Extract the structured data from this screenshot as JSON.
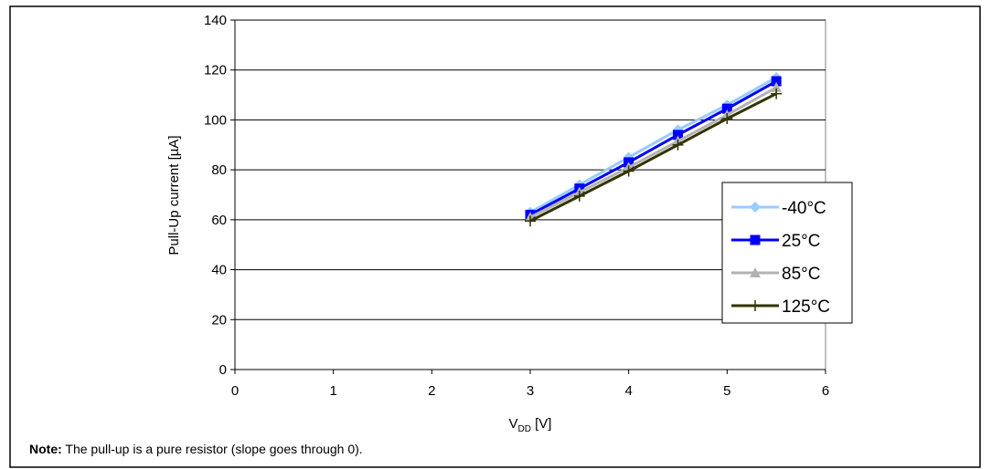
{
  "chart_data": {
    "type": "line",
    "xlabel_main": "V",
    "xlabel_sub": "DD",
    "xlabel_unit": " [V]",
    "ylabel": "Pull-Up current [µA]",
    "xlim": [
      0,
      6
    ],
    "ylim": [
      0,
      140
    ],
    "xticks": [
      0,
      1,
      2,
      3,
      4,
      5,
      6
    ],
    "yticks": [
      0,
      20,
      40,
      60,
      80,
      100,
      120,
      140
    ],
    "grid": "horizontal",
    "legend_position": "right",
    "x": [
      3,
      3.5,
      4,
      4.5,
      5,
      5.5
    ],
    "series": [
      {
        "name": "-40°C",
        "values": [
          63,
          74,
          85,
          96,
          106,
          117
        ],
        "color": "#99ccff",
        "marker": "diamond"
      },
      {
        "name": "25°C",
        "values": [
          62,
          72.5,
          83,
          94,
          104.5,
          115.5
        ],
        "color": "#0000ff",
        "marker": "square"
      },
      {
        "name": "85°C",
        "values": [
          61,
          71,
          81,
          91.5,
          102,
          113
        ],
        "color": "#b3b3b3",
        "marker": "triangle"
      },
      {
        "name": "125°C",
        "values": [
          59.5,
          69.5,
          79.5,
          90,
          100.5,
          110.5
        ],
        "color": "#333300",
        "marker": "plus"
      }
    ]
  },
  "note": {
    "label": "Note:",
    "text": " The pull-up is a pure resistor (slope goes through 0)."
  }
}
